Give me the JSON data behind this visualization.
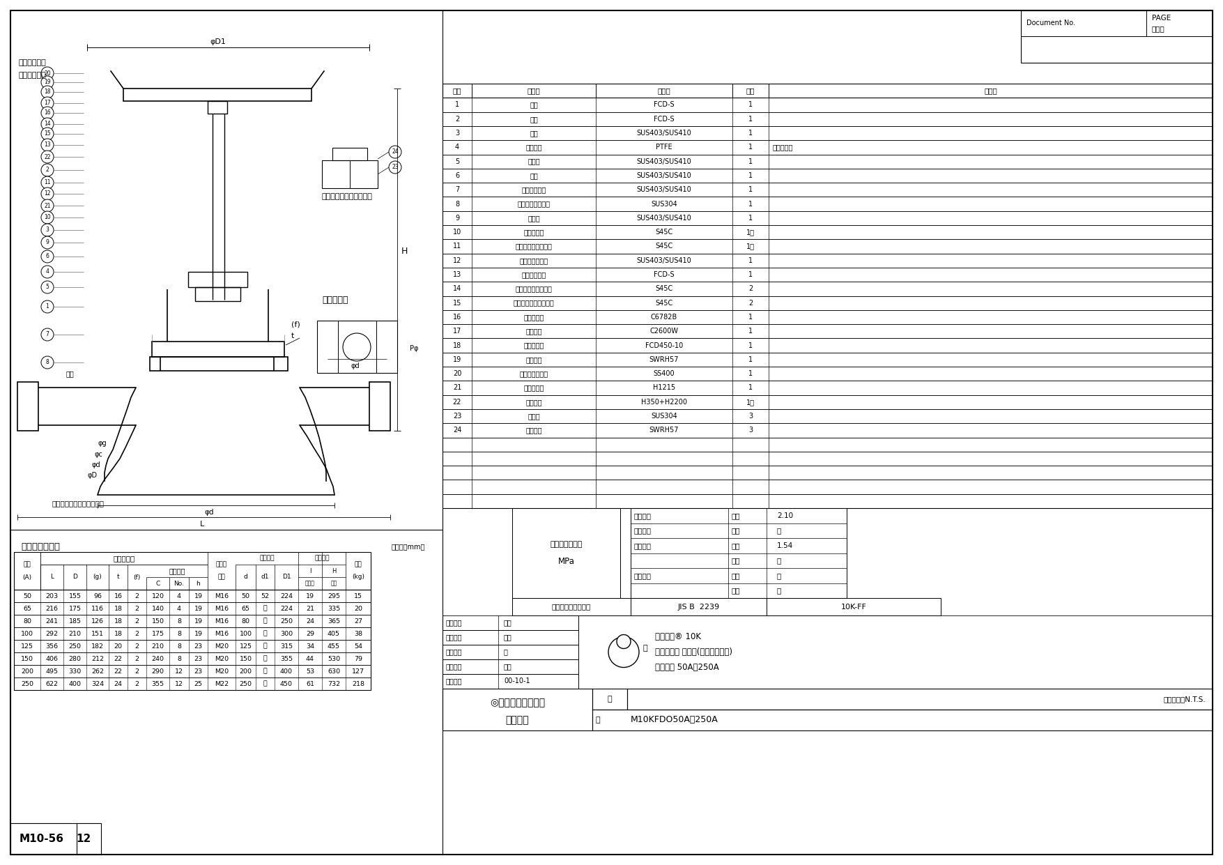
{
  "bg_color": "#ffffff",
  "doc_number": "M10-56",
  "doc_page": "12",
  "parts_rows": [
    [
      "1",
      "弁箱",
      "FCD-S",
      "1",
      ""
    ],
    [
      "2",
      "ふた",
      "FCD-S",
      "1",
      ""
    ],
    [
      "3",
      "弁棒",
      "SUS403/SUS410",
      "1",
      ""
    ],
    [
      "4",
      "ディスク",
      "PTFE",
      "1",
      "充填剤入り"
    ],
    [
      "5",
      "弁座輪",
      "SUS403/SUS410",
      "1",
      ""
    ],
    [
      "6",
      "弁体",
      "SUS403/SUS410",
      "1",
      ""
    ],
    [
      "7",
      "ディスク押え",
      "SUS403/SUS410",
      "1",
      ""
    ],
    [
      "8",
      "回り止め付ナット",
      "SUS304",
      "1",
      ""
    ],
    [
      "9",
      "弁押え",
      "SUS403/SUS410",
      "1",
      ""
    ],
    [
      "10",
      "ふたボルト",
      "S45C",
      "1組",
      ""
    ],
    [
      "11",
      "ふたボルト用ナット",
      "S45C",
      "1組",
      ""
    ],
    [
      "12",
      "パッキン受け輪",
      "SUS403/SUS410",
      "1",
      ""
    ],
    [
      "13",
      "パッキン押え",
      "FCD-S",
      "1",
      ""
    ],
    [
      "14",
      "パッキン押えボルト",
      "S45C",
      "2",
      ""
    ],
    [
      "15",
      "パッキン押え用ナット",
      "S45C",
      "2",
      ""
    ],
    [
      "16",
      "ねじはめ輪",
      "C6782B",
      "1",
      ""
    ],
    [
      "17",
      "止めピン",
      "C2600W",
      "1",
      ""
    ],
    [
      "18",
      "ハンドル車",
      "FCD450-10",
      "1",
      ""
    ],
    [
      "19",
      "ばね座金",
      "SWRH57",
      "1",
      ""
    ],
    [
      "20",
      "ハンドルナット",
      "SS400",
      "1",
      ""
    ],
    [
      "21",
      "ガスケット",
      "H1215",
      "1",
      ""
    ],
    [
      "22",
      "パッキン",
      "H350+H2200",
      "1組",
      ""
    ],
    [
      "23",
      "ボルト",
      "SUS304",
      "3",
      ""
    ],
    [
      "24",
      "ばね座金",
      "SWRH57",
      "3",
      ""
    ]
  ],
  "dim_rows": [
    [
      "50",
      "203",
      "155",
      "96",
      "16",
      "2",
      "120",
      "4",
      "19",
      "M16",
      "50",
      "52",
      "224",
      "19",
      "295",
      "15"
    ],
    [
      "65",
      "216",
      "175",
      "116",
      "18",
      "2",
      "140",
      "4",
      "19",
      "M16",
      "65",
      "－",
      "224",
      "21",
      "335",
      "20"
    ],
    [
      "80",
      "241",
      "185",
      "126",
      "18",
      "2",
      "150",
      "8",
      "19",
      "M16",
      "80",
      "－",
      "250",
      "24",
      "365",
      "27"
    ],
    [
      "100",
      "292",
      "210",
      "151",
      "18",
      "2",
      "175",
      "8",
      "19",
      "M16",
      "100",
      "－",
      "300",
      "29",
      "405",
      "38"
    ],
    [
      "125",
      "356",
      "250",
      "182",
      "20",
      "2",
      "210",
      "8",
      "23",
      "M20",
      "125",
      "－",
      "315",
      "34",
      "455",
      "54"
    ],
    [
      "150",
      "406",
      "280",
      "212",
      "22",
      "2",
      "240",
      "8",
      "23",
      "M20",
      "150",
      "－",
      "355",
      "44",
      "530",
      "79"
    ],
    [
      "200",
      "495",
      "330",
      "262",
      "22",
      "2",
      "290",
      "12",
      "23",
      "M20",
      "200",
      "－",
      "400",
      "53",
      "630",
      "127"
    ],
    [
      "250",
      "622",
      "400",
      "324",
      "24",
      "2",
      "355",
      "12",
      "25",
      "M22",
      "250",
      "－",
      "450",
      "61",
      "732",
      "218"
    ]
  ],
  "insp_data": [
    [
      "弁箱耐圧",
      "水圧",
      "2.10"
    ],
    [
      "弁箱気密",
      "空圧",
      "－"
    ],
    [
      "弁座漏れ",
      "水圧",
      "1.54"
    ],
    [
      "",
      "空圧",
      "－"
    ],
    [
      "逆座漏れ",
      "水圧",
      "－"
    ],
    [
      "",
      "空圧",
      "－"
    ]
  ],
  "staff": [
    [
      "製　図：",
      "中川"
    ],
    [
      "検　図：",
      "相原"
    ],
    [
      "審　査：",
      "阪"
    ],
    [
      "承　認：",
      "古川"
    ],
    [
      "日　付：",
      "00-10-1"
    ]
  ],
  "product_lines": [
    "マレフル® 10K",
    "フランジ形 玉形弁(ソフトシート)",
    "サイズ　 50A～250A"
  ],
  "jis_spec": "JIS B  2239",
  "pressure_class": "10K-FF",
  "drawing_number": "M10KFDO50A～250A"
}
